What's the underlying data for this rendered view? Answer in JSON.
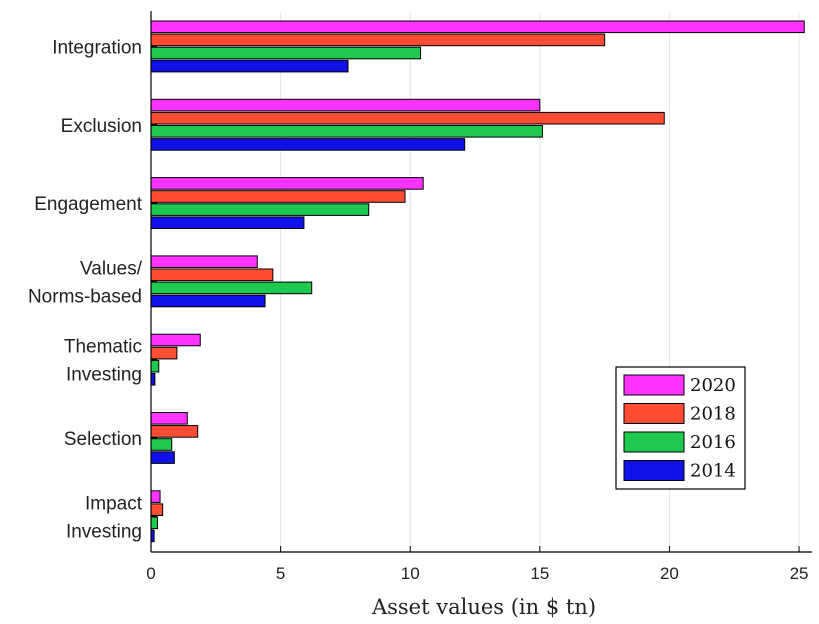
{
  "chart_data": {
    "type": "bar",
    "orientation": "horizontal",
    "categories": [
      [
        "Integration"
      ],
      [
        "Exclusion"
      ],
      [
        "Engagement"
      ],
      [
        "Values/",
        "Norms-based"
      ],
      [
        "Thematic",
        "Investing"
      ],
      [
        "Selection"
      ],
      [
        "Impact",
        "Investing"
      ]
    ],
    "series": [
      {
        "name": "2020",
        "color": "#ff33ff",
        "values": [
          25.2,
          15.0,
          10.5,
          4.1,
          1.9,
          1.4,
          0.35
        ]
      },
      {
        "name": "2018",
        "color": "#ff4d33",
        "values": [
          17.5,
          19.8,
          9.8,
          4.7,
          1.0,
          1.8,
          0.45
        ]
      },
      {
        "name": "2016",
        "color": "#1fc94f",
        "values": [
          10.4,
          15.1,
          8.4,
          6.2,
          0.3,
          0.8,
          0.25
        ]
      },
      {
        "name": "2014",
        "color": "#1010e8",
        "values": [
          7.6,
          12.1,
          5.9,
          4.4,
          0.15,
          0.9,
          0.12
        ]
      }
    ],
    "xlabel": "Asset values (in $ tn)",
    "xlim": [
      0,
      25.5
    ],
    "xticks": [
      0,
      5,
      10,
      15,
      20,
      25
    ],
    "grid": "x",
    "legend_position": "bottom-right"
  }
}
